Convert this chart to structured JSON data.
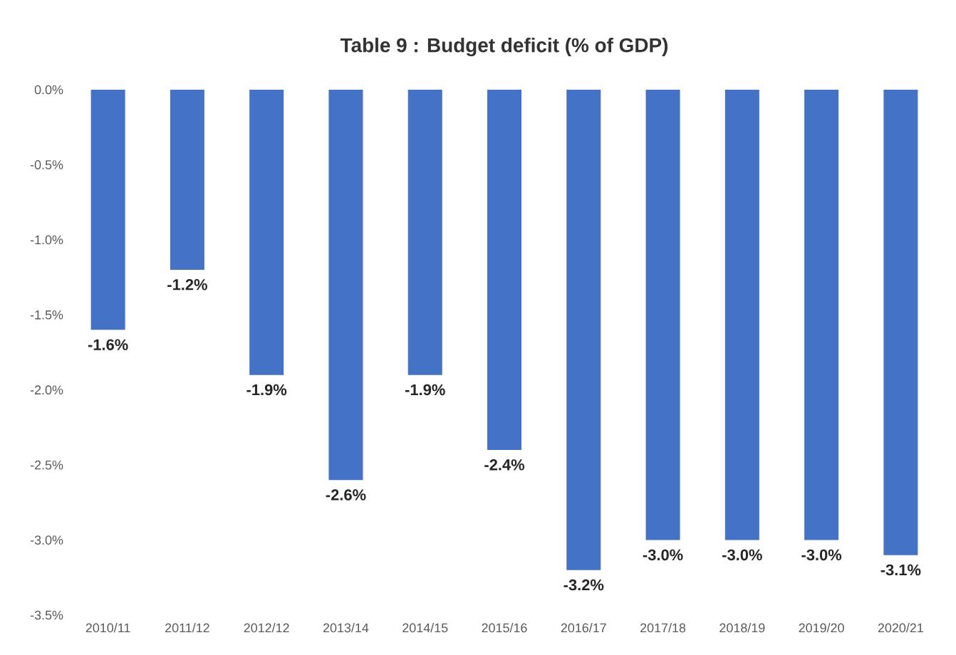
{
  "chart_data": {
    "type": "bar",
    "title": "Table 9 : Budget deficit (% of GDP)",
    "categories": [
      "2010/11",
      "2011/12",
      "2012/12",
      "2013/14",
      "2014/15",
      "2015/16",
      "2016/17",
      "2017/18",
      "2018/19",
      "2019/20",
      "2020/21"
    ],
    "values": [
      -1.6,
      -1.2,
      -1.9,
      -2.6,
      -1.9,
      -2.4,
      -3.2,
      -3.0,
      -3.0,
      -3.0,
      -3.1
    ],
    "value_labels": [
      "-1.6%",
      "-1.2%",
      "-1.9%",
      "-2.6%",
      "-1.9%",
      "-2.4%",
      "-3.2%",
      "-3.0%",
      "-3.0%",
      "-3.0%",
      "-3.1%"
    ],
    "color": "#4472c4",
    "ylim": [
      -3.5,
      0
    ],
    "yticks": [
      {
        "value": 0,
        "label": "0.0%"
      },
      {
        "value": -0.5,
        "label": "-0.5%"
      },
      {
        "value": -1,
        "label": "-1.0%"
      },
      {
        "value": -1.5,
        "label": "-1.5%"
      },
      {
        "value": -2,
        "label": "-2.0%"
      },
      {
        "value": -2.5,
        "label": "-2.5%"
      },
      {
        "value": -3,
        "label": "-3.0%"
      },
      {
        "value": -3.5,
        "label": "-3.5%"
      }
    ]
  }
}
